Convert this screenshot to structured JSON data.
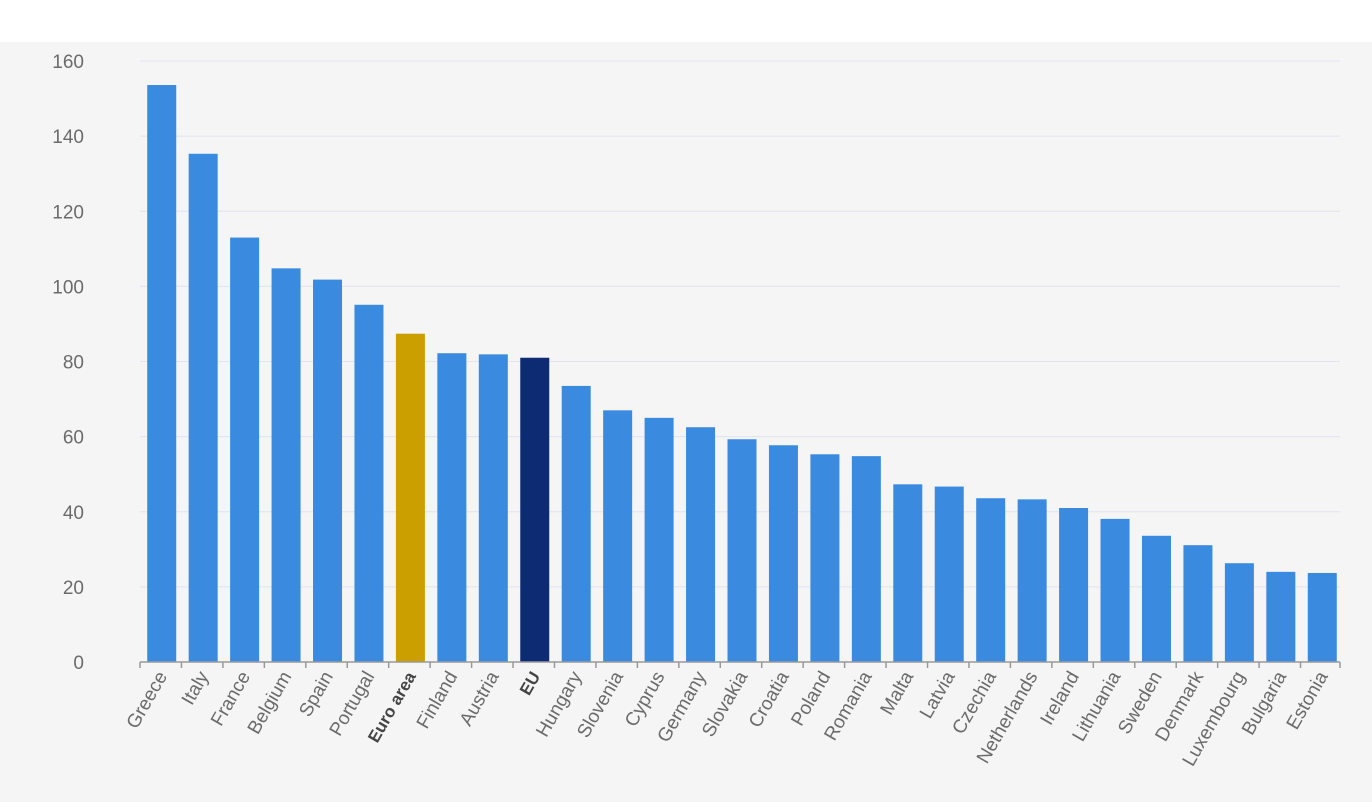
{
  "chart_data": {
    "type": "bar",
    "categories": [
      "Greece",
      "Italy",
      "France",
      "Belgium",
      "Spain",
      "Portugal",
      "Euro area",
      "Finland",
      "Austria",
      "EU",
      "Hungary",
      "Slovenia",
      "Cyprus",
      "Germany",
      "Slovakia",
      "Croatia",
      "Poland",
      "Romania",
      "Malta",
      "Latvia",
      "Czechia",
      "Netherlands",
      "Ireland",
      "Lithuania",
      "Sweden",
      "Denmark",
      "Luxembourg",
      "Bulgaria",
      "Estonia"
    ],
    "values": [
      153.6,
      135.3,
      113.0,
      104.8,
      101.8,
      95.1,
      87.4,
      82.2,
      81.9,
      81.0,
      73.5,
      67.0,
      65.0,
      62.5,
      59.3,
      57.7,
      55.3,
      54.8,
      47.3,
      46.7,
      43.6,
      43.3,
      41.0,
      38.1,
      33.6,
      31.1,
      26.3,
      24.0,
      23.7
    ],
    "highlight": {
      "Euro area": "#cc9f00",
      "EU": "#0d2b73"
    },
    "bold_categories": [
      "Euro area",
      "EU"
    ],
    "bar_color": "#3a8ae0",
    "ylim": [
      0,
      160
    ],
    "yticks": [
      0,
      20,
      40,
      60,
      80,
      100,
      120,
      140,
      160
    ],
    "grid": true,
    "grid_color": "#e2e4ee",
    "axis_color": "#999999",
    "title": "",
    "xlabel": "",
    "ylabel": ""
  }
}
